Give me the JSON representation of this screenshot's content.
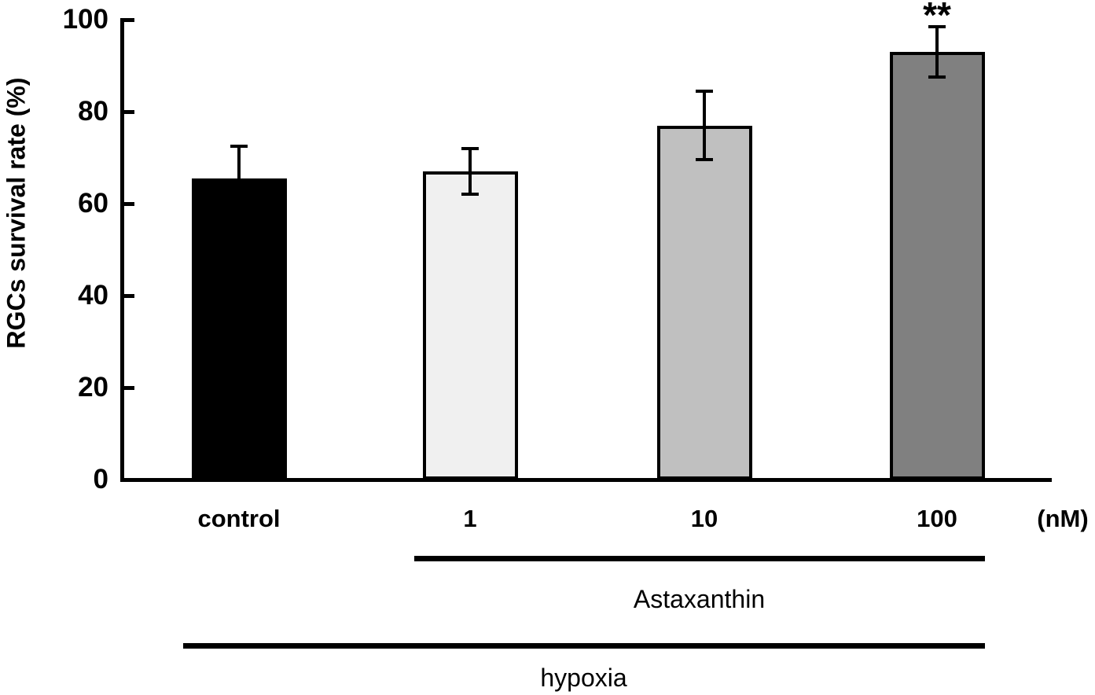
{
  "chart_data": {
    "type": "bar",
    "title": "",
    "ylabel": "RGCs survival rate (%)",
    "xlabel": "",
    "unit_label": "(nM)",
    "categories": [
      "control",
      "1",
      "10",
      "100"
    ],
    "values": [
      65.5,
      67,
      77,
      93
    ],
    "error_bars": [
      7,
      5,
      7.5,
      5.5
    ],
    "bar_fill_colors": [
      "#000000",
      "#F0F0F0",
      "#C0C0C0",
      "#808080"
    ],
    "bar_border_color": "#000000",
    "axis_color": "#000000",
    "text_color": "#000000",
    "background_color": "#FFFFFF",
    "y_ticks": [
      0,
      20,
      40,
      60,
      80,
      100
    ],
    "ylim": [
      0,
      100
    ],
    "grid": false,
    "legend_position": "none",
    "annotations": [
      {
        "text": "**",
        "category_index": 3
      }
    ],
    "group_lines": [
      {
        "label": "Astaxanthin",
        "from_index": 1,
        "to_index": 3
      },
      {
        "label": "hypoxia",
        "from_index": 0,
        "to_index": 3
      }
    ]
  }
}
